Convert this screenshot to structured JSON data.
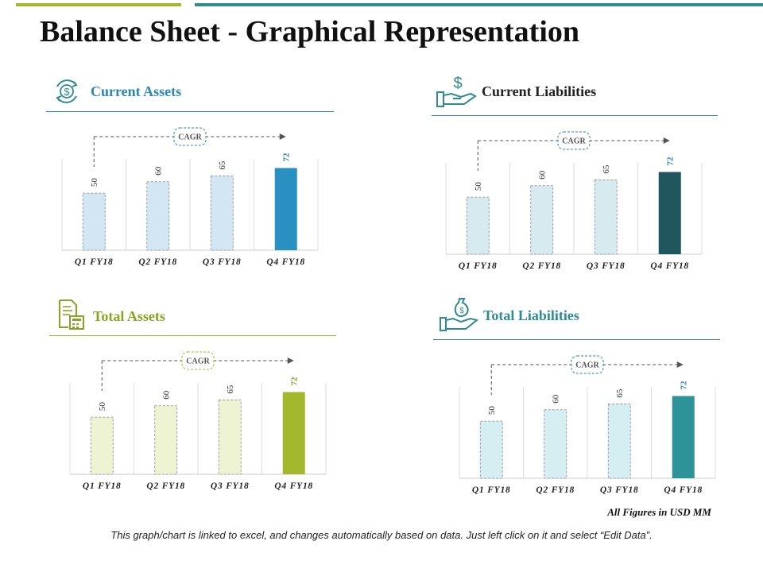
{
  "title": "Balance Sheet - Graphical Representation",
  "colors": {
    "green_bar": "#a3b82c",
    "teal_bar": "#2e8b8f"
  },
  "panels": [
    {
      "title": "Current Assets",
      "icon": "dollar-cycle-icon",
      "title_color": "#2a87b8",
      "rule_color": "#2e8b8f",
      "light_fill": "#d2e6f3",
      "dark_fill": "#2a8fc1",
      "highlight_color": "#2a87b8",
      "cagr_label": "CAGR",
      "chart_data": {
        "type": "bar",
        "categories": [
          "Q1 FY18",
          "Q2 FY18",
          "Q3 FY18",
          "Q4 FY18"
        ],
        "values": [
          50,
          60,
          65,
          72
        ],
        "ylim": [
          0,
          80
        ],
        "grid": false
      }
    },
    {
      "title": "Current  Liabilities",
      "icon": "hand-dollar-icon",
      "title_color": "#222222",
      "rule_color": "#2e8b8f",
      "light_fill": "#d6eaef",
      "dark_fill": "#20565e",
      "highlight_color": "#2a87b8",
      "cagr_label": "CAGR",
      "chart_data": {
        "type": "bar",
        "categories": [
          "Q1 FY18",
          "Q2 FY18",
          "Q3 FY18",
          "Q4 FY18"
        ],
        "values": [
          50,
          60,
          65,
          72
        ],
        "ylim": [
          0,
          80
        ],
        "grid": false
      }
    },
    {
      "title": "Total Assets",
      "icon": "document-calculator-icon",
      "title_color": "#8aa324",
      "rule_color": "#a3b82c",
      "light_fill": "#eef3d3",
      "dark_fill": "#a3b82c",
      "highlight_color": "#8aa324",
      "cagr_label": "CAGR",
      "chart_data": {
        "type": "bar",
        "categories": [
          "Q1 FY18",
          "Q2 FY18",
          "Q3 FY18",
          "Q4 FY18"
        ],
        "values": [
          50,
          60,
          65,
          72
        ],
        "ylim": [
          0,
          80
        ],
        "grid": false
      }
    },
    {
      "title": "Total Liabilities",
      "icon": "hand-moneybag-icon",
      "title_color": "#2e8b8f",
      "rule_color": "#2e8b8f",
      "light_fill": "#d4eef1",
      "dark_fill": "#2e9398",
      "highlight_color": "#2a87b8",
      "cagr_label": "CAGR",
      "chart_data": {
        "type": "bar",
        "categories": [
          "Q1 FY18",
          "Q2 FY18",
          "Q3 FY18",
          "Q4 FY18"
        ],
        "values": [
          50,
          60,
          65,
          72
        ],
        "ylim": [
          0,
          80
        ],
        "grid": false
      }
    }
  ],
  "note": "All Figures in USD MM",
  "footer": "This graph/chart is linked to excel, and changes automatically based on data.  Just left click on it and select “Edit Data”."
}
